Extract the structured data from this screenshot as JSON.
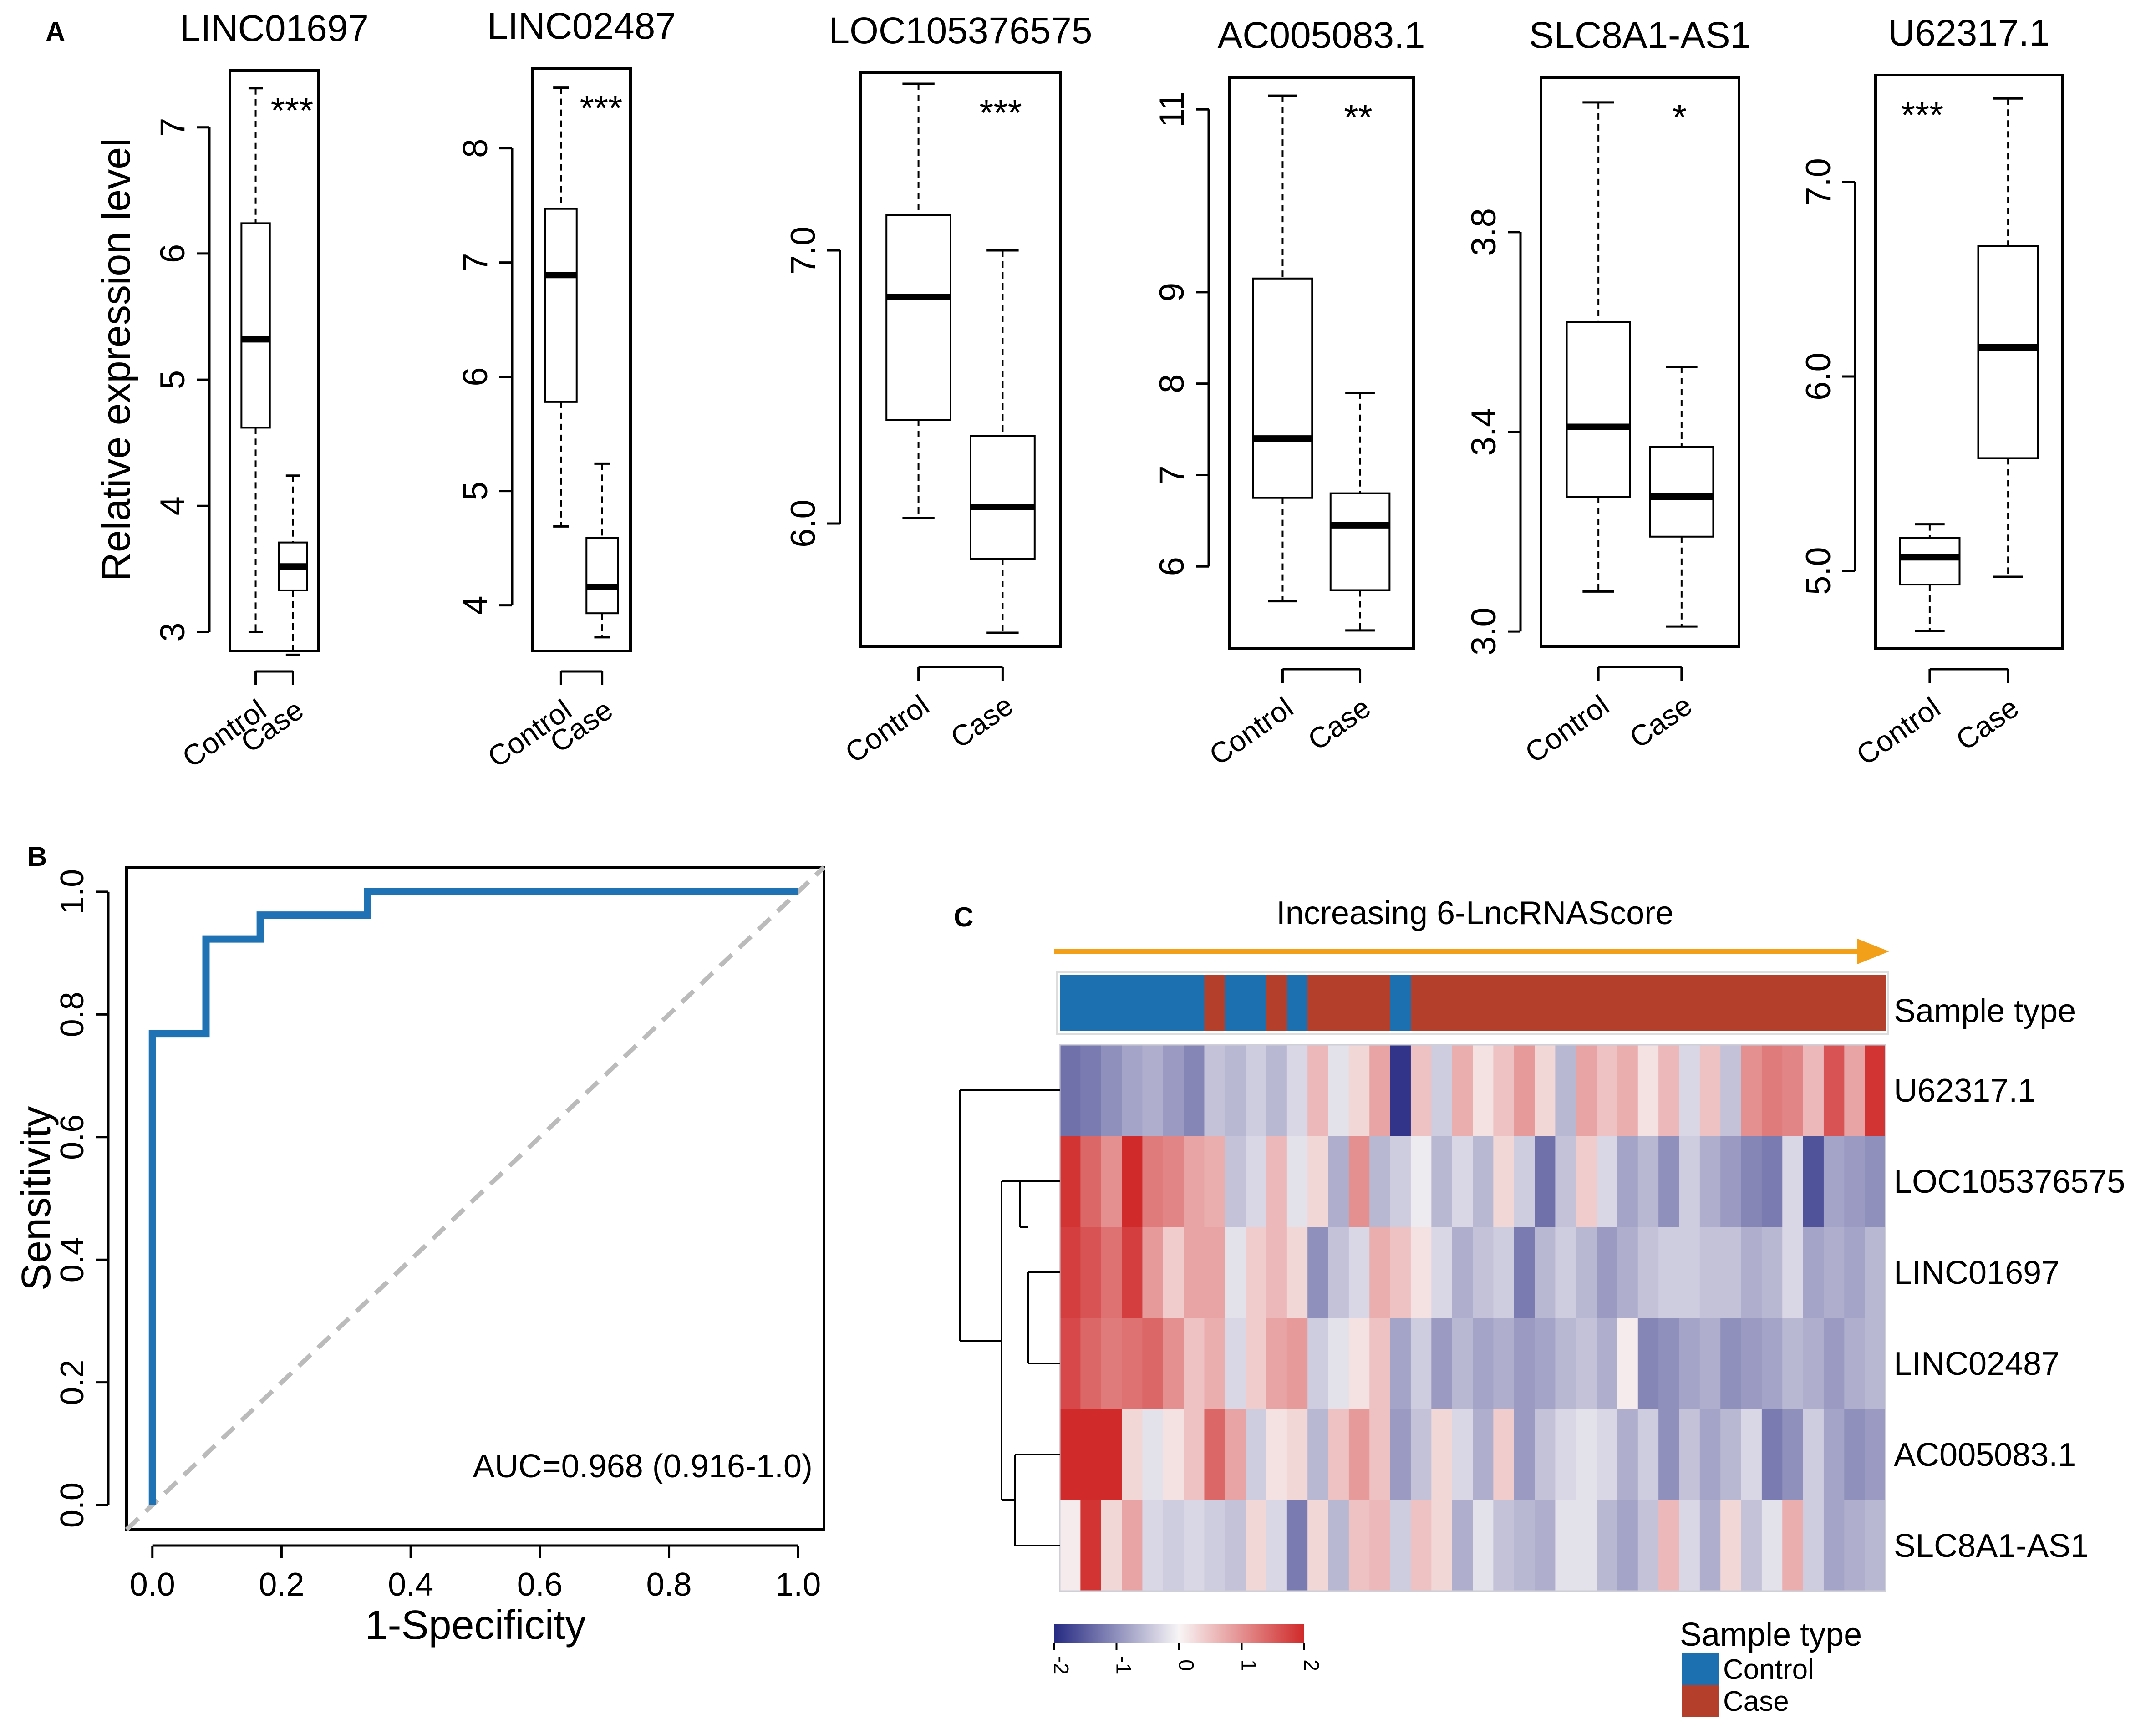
{
  "panel_labels": {
    "a": "A",
    "b": "B",
    "c": "C"
  },
  "chart_data": [
    {
      "type": "box",
      "panel": "A",
      "ylabel": "Relative expression level",
      "categories": [
        "Control",
        "Case"
      ],
      "plots": [
        {
          "title": "LINC01697",
          "sig": "***",
          "ylim": [
            2.85,
            7.45
          ],
          "ticks": [
            "3",
            "4",
            "5",
            "6",
            "7"
          ],
          "boxes": [
            {
              "min": 3.0,
              "q1": 4.62,
              "median": 5.32,
              "q3": 6.24,
              "max": 7.31
            },
            {
              "min": 2.82,
              "q1": 3.33,
              "median": 3.52,
              "q3": 3.71,
              "max": 4.24
            }
          ]
        },
        {
          "title": "LINC02487",
          "sig": "***",
          "ylim": [
            3.6,
            8.7
          ],
          "ticks": [
            "4",
            "5",
            "6",
            "7",
            "8"
          ],
          "boxes": [
            {
              "min": 4.69,
              "q1": 5.78,
              "median": 6.89,
              "q3": 7.47,
              "max": 8.53
            },
            {
              "min": 3.72,
              "q1": 3.93,
              "median": 4.16,
              "q3": 4.59,
              "max": 5.24
            }
          ]
        },
        {
          "title": "LOC105376575",
          "sig": "***",
          "ylim": [
            5.55,
            7.65
          ],
          "ticks": [
            "6.0",
            "7.0"
          ],
          "boxes": [
            {
              "min": 6.02,
              "q1": 6.38,
              "median": 6.83,
              "q3": 7.13,
              "max": 7.61
            },
            {
              "min": 5.6,
              "q1": 5.87,
              "median": 6.06,
              "q3": 6.32,
              "max": 7.0
            }
          ]
        },
        {
          "title": "AC005083.1",
          "sig": "**",
          "ylim": [
            5.1,
            11.35
          ],
          "ticks": [
            "6",
            "7",
            "8",
            "9",
            "11"
          ],
          "boxes": [
            {
              "min": 5.62,
              "q1": 6.75,
              "median": 7.4,
              "q3": 9.15,
              "max": 11.15
            },
            {
              "min": 5.3,
              "q1": 5.74,
              "median": 6.45,
              "q3": 6.8,
              "max": 7.9
            }
          ]
        },
        {
          "title": "SLC8A1-AS1",
          "sig": "*",
          "ylim": [
            2.97,
            4.11
          ],
          "ticks": [
            "3.0",
            "3.4",
            "3.8"
          ],
          "boxes": [
            {
              "min": 3.08,
              "q1": 3.27,
              "median": 3.41,
              "q3": 3.62,
              "max": 4.06
            },
            {
              "min": 3.01,
              "q1": 3.19,
              "median": 3.27,
              "q3": 3.37,
              "max": 3.53
            }
          ]
        },
        {
          "title": "U62317.1",
          "sig": "***",
          "ylim": [
            4.6,
            7.55
          ],
          "ticks": [
            "5.0",
            "6.0",
            "7.0"
          ],
          "boxes": [
            {
              "min": 4.69,
              "q1": 4.93,
              "median": 5.07,
              "q3": 5.17,
              "max": 5.24
            },
            {
              "min": 4.97,
              "q1": 5.58,
              "median": 6.15,
              "q3": 6.67,
              "max": 7.43
            }
          ]
        }
      ]
    },
    {
      "type": "line",
      "panel": "B",
      "xlabel": "1-Specificity",
      "ylabel": "Sensitivity",
      "xlim": [
        -0.04,
        1.04
      ],
      "ylim": [
        -0.04,
        1.04
      ],
      "xticks": [
        "0.0",
        "0.2",
        "0.4",
        "0.6",
        "0.8",
        "1.0"
      ],
      "yticks": [
        "0.0",
        "0.2",
        "0.4",
        "0.6",
        "0.8",
        "1.0"
      ],
      "series": [
        {
          "name": "ROC",
          "color": "#1f73b4",
          "x": [
            0,
            0,
            0.083,
            0.083,
            0.167,
            0.167,
            0.333,
            0.333,
            1.0
          ],
          "y": [
            0,
            0.769,
            0.769,
            0.923,
            0.923,
            0.962,
            0.962,
            1.0,
            1.0
          ]
        },
        {
          "name": "reference",
          "color": "#bbbbbb",
          "x": [
            -0.04,
            1.04
          ],
          "y": [
            -0.04,
            1.04
          ]
        }
      ],
      "annotation": "AUC=0.968 (0.916-1.0)"
    },
    {
      "type": "heatmap",
      "panel": "C",
      "arrow_label": "Increasing 6-LncRNAScore",
      "annotation_label": "Sample type",
      "sample_types": [
        "Control",
        "Control",
        "Control",
        "Control",
        "Control",
        "Control",
        "Control",
        "Case",
        "Control",
        "Control",
        "Case",
        "Control",
        "Case",
        "Case",
        "Case",
        "Case",
        "Control",
        "Case",
        "Case",
        "Case",
        "Case",
        "Case",
        "Case",
        "Case",
        "Case",
        "Case",
        "Case",
        "Case",
        "Case",
        "Case",
        "Case",
        "Case",
        "Case",
        "Case",
        "Case",
        "Case",
        "Case",
        "Case",
        "Case",
        "Case"
      ],
      "rows": [
        {
          "name": "U62317.1",
          "values": [
            -1.3,
            -1.2,
            -1.0,
            -0.8,
            -0.7,
            -0.9,
            -1.1,
            -0.5,
            -0.6,
            -0.4,
            -0.6,
            -0.3,
            0.6,
            -0.2,
            0.3,
            0.8,
            -1.9,
            0.5,
            -0.4,
            0.7,
            0.2,
            0.5,
            0.9,
            0.3,
            -0.6,
            0.8,
            0.5,
            0.7,
            0.2,
            0.6,
            -0.3,
            0.5,
            -0.5,
            1.0,
            1.2,
            1.1,
            0.6,
            1.6,
            0.8,
            1.9
          ]
        },
        {
          "name": "LOC105376575",
          "values": [
            1.9,
            1.4,
            1.0,
            2.0,
            1.2,
            1.1,
            0.8,
            0.7,
            -0.5,
            -0.3,
            0.6,
            -0.2,
            0.3,
            -0.7,
            1.0,
            -0.6,
            -0.4,
            -0.1,
            -0.6,
            -0.3,
            -0.6,
            0.3,
            -0.4,
            -1.3,
            -0.5,
            0.4,
            -0.3,
            -0.8,
            -0.6,
            -1.0,
            -0.4,
            -0.7,
            -0.9,
            -1.1,
            -1.2,
            -0.3,
            -1.6,
            -0.8,
            -0.9,
            -1.0
          ]
        },
        {
          "name": "LINC01697",
          "values": [
            1.8,
            1.6,
            1.3,
            1.8,
            0.9,
            0.4,
            0.8,
            0.8,
            -0.2,
            0.4,
            0.6,
            0.3,
            -1.0,
            -0.5,
            -0.3,
            0.7,
            0.5,
            0.2,
            -0.3,
            -0.7,
            -0.5,
            -0.4,
            -1.2,
            -0.6,
            -0.4,
            -0.6,
            -0.9,
            -0.7,
            -0.5,
            -0.4,
            -0.4,
            -0.5,
            -0.5,
            -0.7,
            -0.6,
            -0.3,
            -0.8,
            -0.7,
            -0.8,
            -0.6
          ]
        },
        {
          "name": "LINC02487",
          "values": [
            1.7,
            1.4,
            1.2,
            1.3,
            1.4,
            1.0,
            0.5,
            0.7,
            -0.3,
            0.4,
            0.8,
            0.9,
            -0.4,
            -0.2,
            0.2,
            0.5,
            -0.8,
            -0.4,
            -0.9,
            -0.6,
            -0.8,
            -0.7,
            -0.9,
            -0.8,
            -0.6,
            -0.5,
            -0.7,
            0.1,
            -1.1,
            -1.0,
            -0.8,
            -0.7,
            -1.0,
            -0.9,
            -0.8,
            -0.6,
            -0.7,
            -0.9,
            -0.7,
            -0.6
          ]
        },
        {
          "name": "AC005083.1",
          "values": [
            2.0,
            2.0,
            2.0,
            0.3,
            -0.2,
            0.2,
            0.5,
            1.4,
            0.8,
            -0.4,
            0.2,
            0.3,
            -0.6,
            0.5,
            0.9,
            0.5,
            -0.9,
            -0.5,
            0.3,
            -0.3,
            -0.7,
            0.4,
            -0.9,
            -0.5,
            -0.3,
            -0.2,
            -0.3,
            -0.7,
            -0.4,
            -1.0,
            -0.5,
            -0.8,
            -0.6,
            -0.3,
            -1.2,
            -1.0,
            -0.4,
            -0.8,
            -1.0,
            -0.9
          ]
        },
        {
          "name": "SLC8A1-AS1",
          "values": [
            0.1,
            1.9,
            0.3,
            0.8,
            -0.3,
            -0.4,
            -0.3,
            -0.4,
            -0.5,
            0.3,
            -0.3,
            -1.2,
            0.3,
            -0.6,
            0.5,
            0.6,
            -0.4,
            0.5,
            0.3,
            -0.7,
            -0.2,
            -0.5,
            -0.6,
            -0.7,
            -0.2,
            -0.2,
            -0.6,
            -0.8,
            -0.5,
            0.6,
            -0.3,
            -0.7,
            0.3,
            -0.5,
            -0.2,
            0.7,
            -0.4,
            -0.8,
            -0.7,
            -0.6
          ]
        }
      ],
      "scale": {
        "min": -2,
        "max": 2,
        "ticks": [
          "-2",
          "-1",
          "0",
          "1",
          "2"
        ]
      },
      "legend": {
        "title": "Sample type",
        "items": [
          {
            "label": "Control",
            "color": "#1c70b0"
          },
          {
            "label": "Case",
            "color": "#b4402c"
          }
        ]
      },
      "colors": {
        "low": "#262a82",
        "mid": "#f8f5f6",
        "high": "#d02a2a",
        "arrow": "#f2a01a"
      }
    }
  ]
}
